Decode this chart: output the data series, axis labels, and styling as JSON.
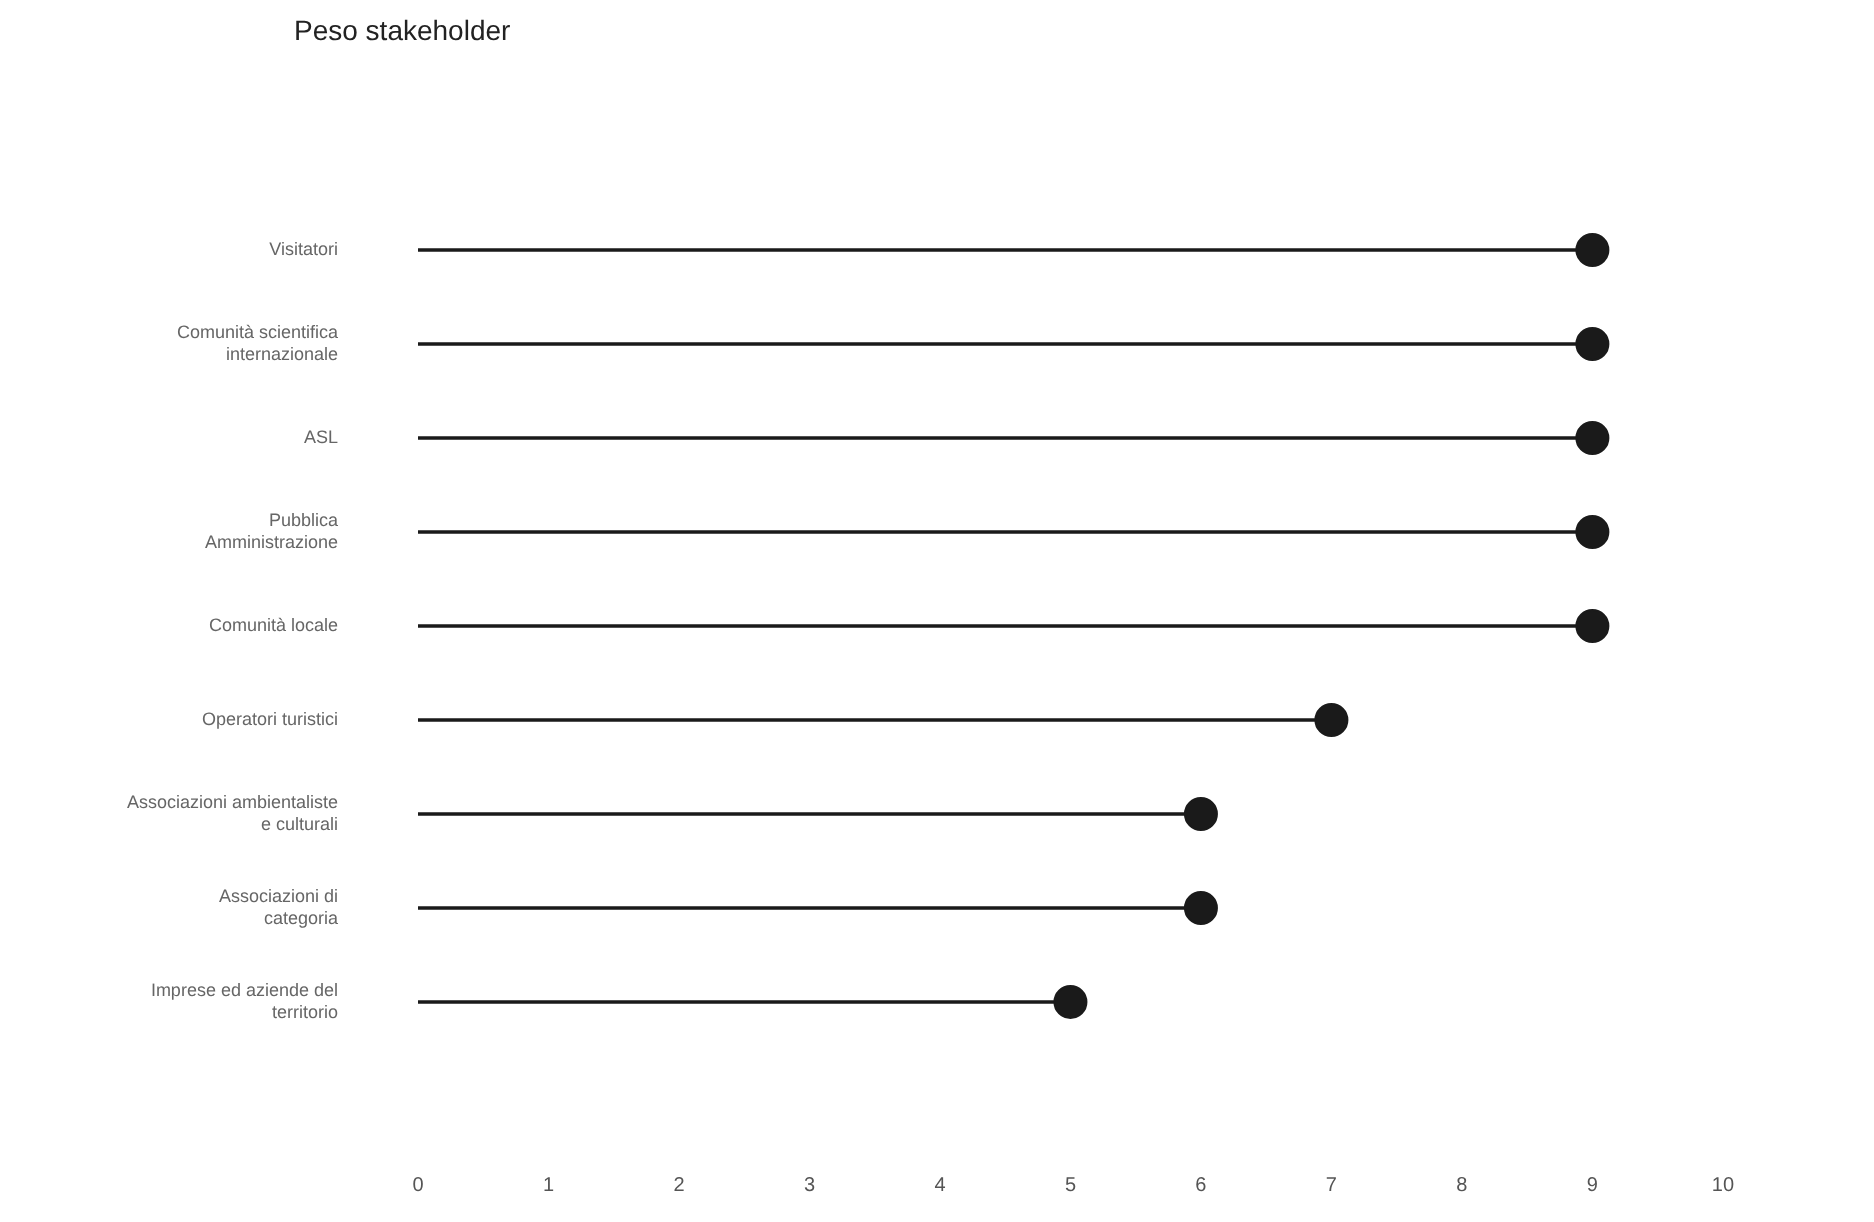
{
  "chart_data": {
    "type": "lollipop",
    "title": "Peso stakeholder",
    "orientation": "horizontal",
    "categories": [
      "Visitatori",
      "Comunità scientifica\ninternazionale",
      "ASL",
      "Pubblica\nAmministrazione",
      "Comunità locale",
      "Operatori turistici",
      "Associazioni ambientaliste\ne culturali",
      "Associazioni di\ncategoria",
      "Imprese ed aziende del\nterritorio"
    ],
    "values": [
      9,
      9,
      9,
      9,
      9,
      7,
      6,
      6,
      5
    ],
    "color": "#1a1a1a",
    "marker": "circle",
    "grid": false,
    "xlim": [
      0,
      10
    ],
    "xticks": [
      0,
      1,
      2,
      3,
      4,
      5,
      6,
      7,
      8,
      9,
      10
    ]
  }
}
